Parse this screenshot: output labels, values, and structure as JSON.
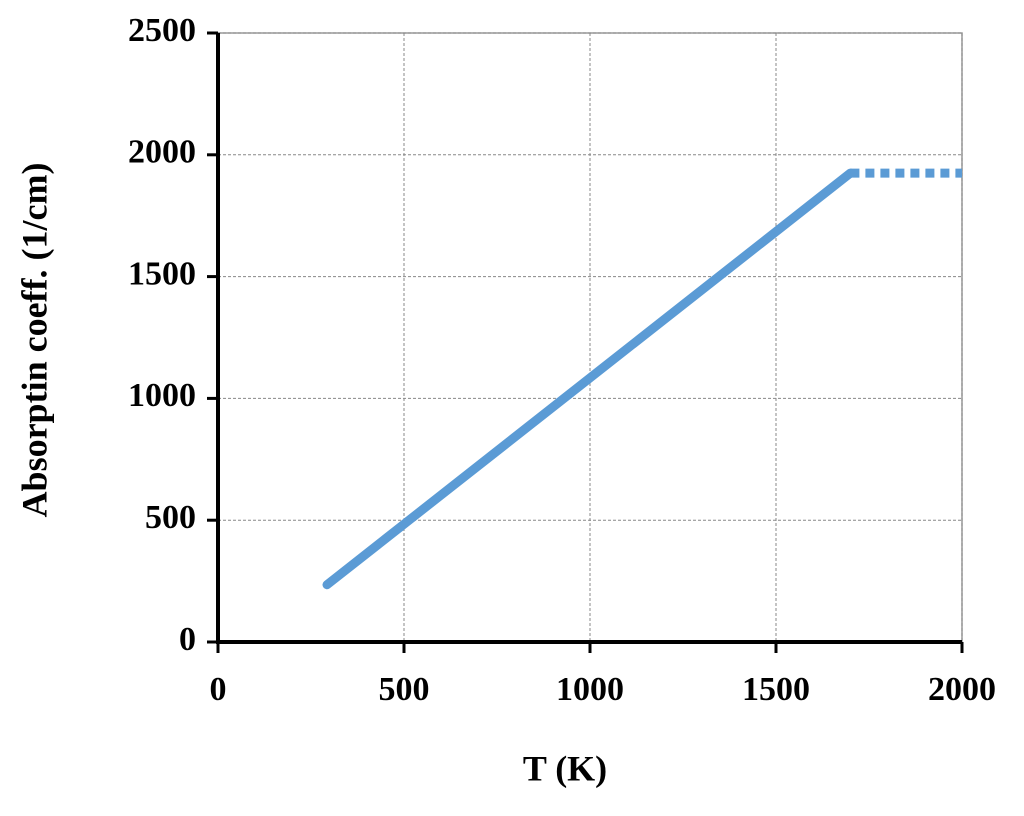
{
  "chart_data": {
    "type": "line",
    "xlabel": "T (K)",
    "ylabel": "Absorptin coeff. (1/cm)",
    "xlim": [
      0,
      2000
    ],
    "ylim": [
      0,
      2500
    ],
    "xticks": [
      0,
      500,
      1000,
      1500,
      2000
    ],
    "yticks": [
      0,
      500,
      1000,
      1500,
      2000,
      2500
    ],
    "grid": true,
    "series": [
      {
        "color": "#5b9bd5",
        "style": "solid",
        "x": [
          293,
          1700
        ],
        "values": [
          235,
          1925
        ]
      },
      {
        "color": "#5b9bd5",
        "style": "dotted",
        "x": [
          1700,
          2000
        ],
        "values": [
          1925,
          1925
        ]
      }
    ]
  }
}
